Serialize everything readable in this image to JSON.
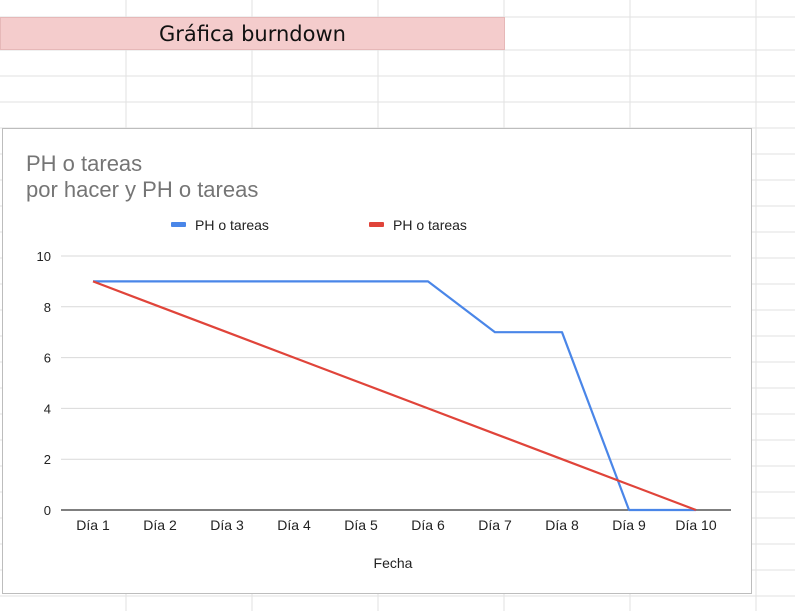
{
  "sheet": {
    "title_cell": "Gráfica burndown"
  },
  "chart_data": {
    "type": "line",
    "title_line1": "PH o tareas",
    "title_line2": "por hacer y PH o tareas",
    "xlabel": "Fecha",
    "ylabel": "",
    "categories": [
      "Día 1",
      "Día 2",
      "Día 3",
      "Día 4",
      "Día 5",
      "Día 6",
      "Día 7",
      "Día 8",
      "Día 9",
      "Día 10"
    ],
    "ylim": [
      0,
      10
    ],
    "yticks": [
      0,
      2,
      4,
      6,
      8,
      10
    ],
    "grid": true,
    "legend_position": "top",
    "series": [
      {
        "name": "PH o tareas",
        "color": "#4a86e8",
        "values": [
          9,
          9,
          9,
          9,
          9,
          9,
          7,
          7,
          0,
          0
        ]
      },
      {
        "name": "PH o tareas",
        "color": "#e0443a",
        "values": [
          9,
          8,
          7,
          6,
          5,
          4,
          3,
          2,
          1,
          0
        ]
      }
    ]
  }
}
